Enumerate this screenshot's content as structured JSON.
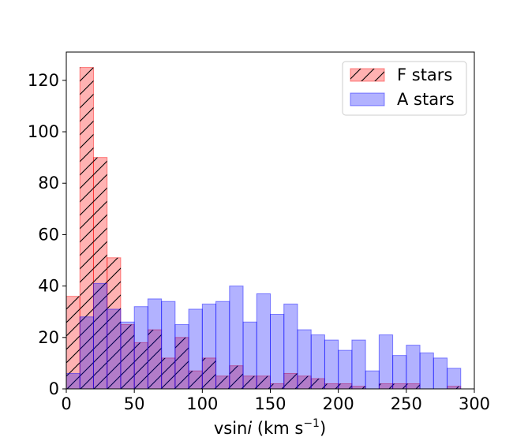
{
  "chart_data": {
    "type": "bar",
    "subtype": "overlaid-histogram",
    "xlabel_prefix": "vsin",
    "xlabel_italic": "i",
    "xlabel_unit_open": " (km s",
    "xlabel_unit_exp": "−1",
    "xlabel_unit_close": ")",
    "ylabel": "",
    "xlim": [
      0,
      300
    ],
    "ylim": [
      0,
      131
    ],
    "xticks": [
      0,
      50,
      100,
      150,
      200,
      250,
      300
    ],
    "yticks": [
      0,
      20,
      40,
      60,
      80,
      100,
      120
    ],
    "bin_width": 10,
    "bin_starts": [
      0,
      10,
      20,
      30,
      40,
      50,
      60,
      70,
      80,
      90,
      100,
      110,
      120,
      130,
      140,
      150,
      160,
      170,
      180,
      190,
      200,
      210,
      220,
      230,
      240,
      250,
      260,
      270,
      280
    ],
    "grid": false,
    "legend_position": "top-right",
    "series": [
      {
        "name": "F stars",
        "color": "#ff0000",
        "alpha": 0.3,
        "hatch": "/",
        "values": [
          36,
          125,
          90,
          51,
          25,
          18,
          23,
          12,
          20,
          7,
          12,
          5,
          9,
          5,
          5,
          2,
          6,
          5,
          4,
          2,
          2,
          1,
          0,
          2,
          2,
          2,
          0,
          0,
          1
        ]
      },
      {
        "name": "A stars",
        "color": "#0000ff",
        "alpha": 0.3,
        "hatch": "",
        "values": [
          6,
          28,
          41,
          31,
          26,
          32,
          35,
          34,
          25,
          31,
          33,
          34,
          40,
          26,
          37,
          29,
          33,
          23,
          21,
          19,
          15,
          19,
          7,
          21,
          13,
          17,
          14,
          12,
          8
        ]
      }
    ]
  }
}
